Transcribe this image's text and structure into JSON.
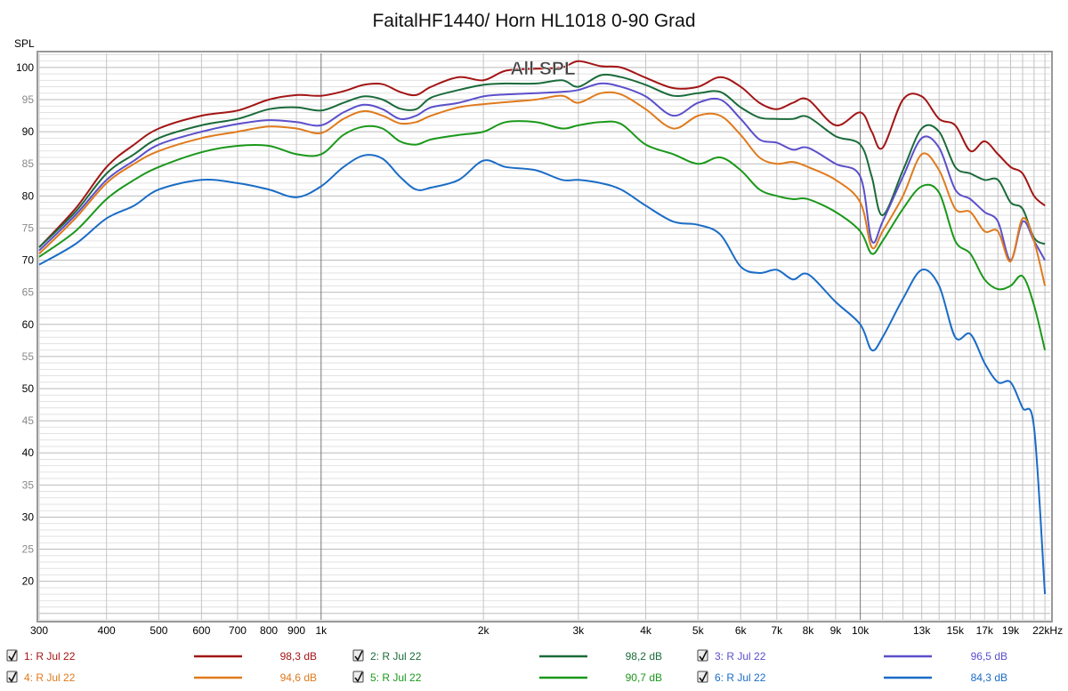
{
  "chart_data": {
    "type": "line",
    "title": "FaitalHF1440/ Horn HL1018 0-90 Grad",
    "overlay_label": "All SPL",
    "ylabel": "SPL",
    "xlabel": "",
    "x_scale": "log",
    "xlim": [
      300,
      22500
    ],
    "ylim": [
      14,
      102.2
    ],
    "grid": true,
    "y_ticks": [
      100,
      95,
      90,
      85,
      80,
      75,
      70,
      65,
      60,
      55,
      50,
      45,
      40,
      35,
      30,
      25,
      20
    ],
    "x_ticks": [
      {
        "value": 300,
        "label": "300"
      },
      {
        "value": 400,
        "label": "400"
      },
      {
        "value": 500,
        "label": "500"
      },
      {
        "value": 600,
        "label": "600"
      },
      {
        "value": 700,
        "label": "700"
      },
      {
        "value": 800,
        "label": "800"
      },
      {
        "value": 900,
        "label": "900"
      },
      {
        "value": 1000,
        "label": "1k"
      },
      {
        "value": 2000,
        "label": "2k"
      },
      {
        "value": 3000,
        "label": "3k"
      },
      {
        "value": 4000,
        "label": "4k"
      },
      {
        "value": 5000,
        "label": "5k"
      },
      {
        "value": 6000,
        "label": "6k"
      },
      {
        "value": 7000,
        "label": "7k"
      },
      {
        "value": 8000,
        "label": "8k"
      },
      {
        "value": 9000,
        "label": "9k"
      },
      {
        "value": 10000,
        "label": "10k"
      },
      {
        "value": 13000,
        "label": "13k"
      },
      {
        "value": 15000,
        "label": "15k"
      },
      {
        "value": 17000,
        "label": "17k"
      },
      {
        "value": 19000,
        "label": "19k"
      },
      {
        "value": 22000,
        "label": "22kHz"
      }
    ],
    "x": [
      300,
      350,
      400,
      450,
      500,
      600,
      700,
      800,
      900,
      1000,
      1100,
      1200,
      1300,
      1400,
      1500,
      1600,
      1800,
      2000,
      2200,
      2500,
      2800,
      3000,
      3300,
      3600,
      4000,
      4500,
      5000,
      5500,
      6000,
      6500,
      7000,
      7500,
      8000,
      9000,
      10000,
      10500,
      11000,
      12000,
      13000,
      14000,
      15000,
      16000,
      17000,
      18000,
      19000,
      20000,
      21000,
      22000
    ],
    "series": [
      {
        "name": "1: R Jul 22",
        "value_label": "98,3 dB",
        "checked": true,
        "color": "#a31515",
        "values": [
          72,
          78,
          84.5,
          88,
          90.5,
          92.5,
          93.3,
          95,
          95.7,
          95.6,
          96.3,
          97.3,
          97.4,
          96.2,
          95.7,
          97,
          98.5,
          98,
          99.5,
          99.8,
          100,
          101,
          100.2,
          100,
          98.4,
          96.8,
          97,
          98.5,
          97,
          94.5,
          93.5,
          94.5,
          95,
          91,
          93,
          90,
          87.5,
          95,
          95.5,
          92,
          91,
          87,
          88.5,
          86.5,
          84.5,
          83.5,
          80,
          78.5
        ]
      },
      {
        "name": "2: R Jul 22",
        "value_label": "98,2 dB",
        "checked": true,
        "color": "#1b6b3a",
        "values": [
          72,
          77.5,
          83.5,
          86.5,
          89,
          91,
          92,
          93.5,
          93.8,
          93.3,
          94.5,
          95.5,
          95,
          93.6,
          93.5,
          95.3,
          96.5,
          97.3,
          97.5,
          97.5,
          98,
          97,
          98.8,
          98.5,
          97.3,
          95.6,
          96,
          96.2,
          93.8,
          92.2,
          92,
          92,
          92.3,
          89.3,
          88,
          83,
          77,
          84,
          90.5,
          90,
          84.5,
          83.5,
          82.5,
          82.5,
          79,
          78,
          73.5,
          72.5
        ]
      },
      {
        "name": "3: R Jul 22",
        "value_label": "96,5 dB",
        "checked": true,
        "color": "#5b4fcb",
        "values": [
          71.5,
          77,
          82.5,
          85.5,
          88,
          90,
          91.2,
          91.8,
          91.5,
          91,
          93,
          94.2,
          93.5,
          92,
          92.5,
          93.8,
          94.5,
          95.5,
          95.8,
          96,
          96.2,
          96.5,
          97.5,
          97,
          95.5,
          92.5,
          94.5,
          95,
          92,
          88.8,
          88.3,
          87.2,
          87.5,
          85,
          83,
          73,
          76,
          83,
          89,
          87.5,
          81,
          79.5,
          77.5,
          76,
          70,
          76,
          73,
          70
        ]
      },
      {
        "name": "4: R Jul 22",
        "value_label": "94,6 dB",
        "checked": true,
        "color": "#e07a1c",
        "values": [
          71,
          76.5,
          82,
          85,
          87,
          89,
          90,
          90.8,
          90.5,
          89.8,
          92,
          93.2,
          92.5,
          91.3,
          91.5,
          92.5,
          93.8,
          94.3,
          94.6,
          95,
          95.6,
          94.5,
          96,
          95.8,
          93.5,
          90.5,
          92.5,
          92.5,
          89.5,
          86,
          85,
          85.3,
          84.5,
          82.5,
          79,
          72,
          74.5,
          80,
          86.5,
          84,
          78,
          77.5,
          74.5,
          74.5,
          69.8,
          76.5,
          73,
          66
        ]
      },
      {
        "name": "5: R Jul 22",
        "value_label": "90,7 dB",
        "checked": true,
        "color": "#1a981a",
        "values": [
          70.5,
          74.5,
          79.5,
          82.5,
          84.5,
          86.8,
          87.8,
          87.8,
          86.5,
          86.5,
          89.5,
          90.8,
          90.5,
          88.5,
          88,
          88.8,
          89.5,
          90,
          91.5,
          91.5,
          90.5,
          91,
          91.5,
          91.2,
          88,
          86.5,
          85,
          86,
          84,
          81,
          80,
          79.5,
          79.5,
          77.5,
          74.5,
          71,
          73,
          78,
          81.5,
          80.5,
          73,
          71,
          67,
          65.5,
          66,
          67.5,
          63,
          56
        ]
      },
      {
        "name": "6: R Jul 22",
        "value_label": "84,3 dB",
        "checked": true,
        "color": "#1a6cc6",
        "values": [
          69.3,
          72.5,
          76.5,
          78.5,
          81,
          82.5,
          82,
          81,
          79.8,
          81.5,
          84.5,
          86.3,
          85.8,
          83,
          81,
          81.3,
          82.5,
          85.5,
          84.5,
          84,
          82.5,
          82.5,
          82,
          81,
          78.5,
          76,
          75.5,
          74,
          69,
          68,
          68.5,
          67,
          67.8,
          63.5,
          60,
          56,
          58,
          64,
          68.5,
          66,
          58,
          58.5,
          54,
          51,
          51,
          47,
          44,
          18
        ]
      }
    ]
  }
}
